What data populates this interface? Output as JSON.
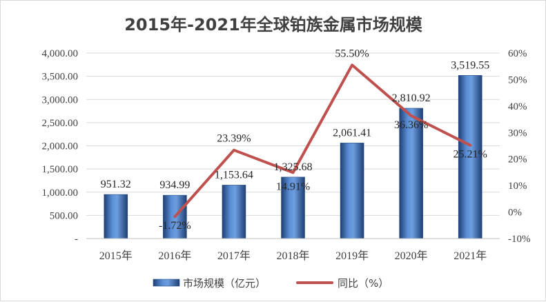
{
  "chart_data": {
    "type": "bar",
    "title": "2015年-2021年全球铂族金属市场规模",
    "categories": [
      "2015年",
      "2016年",
      "2017年",
      "2018年",
      "2019年",
      "2020年",
      "2021年"
    ],
    "series": [
      {
        "name": "市场规模（亿元）",
        "type": "bar",
        "axis": "left",
        "values": [
          951.32,
          934.99,
          1153.64,
          1325.68,
          2061.41,
          2810.92,
          3519.55
        ],
        "labels": [
          "951.32",
          "934.99",
          "1,153.64",
          "1,325.68",
          "2,061.41",
          "2,810.92",
          "3,519.55"
        ],
        "color": "#3e6fb0"
      },
      {
        "name": "同比（%）",
        "type": "line",
        "axis": "right",
        "values": [
          null,
          -1.72,
          23.39,
          14.91,
          55.5,
          36.36,
          25.21
        ],
        "labels": [
          "",
          "-1.72%",
          "23.39%",
          "14.91%",
          "55.50%",
          "36.36%",
          "25.21%"
        ],
        "color": "#c0504d"
      }
    ],
    "y_left": {
      "ylim": [
        0,
        4000
      ],
      "ticks": [
        0,
        500,
        1000,
        1500,
        2000,
        2500,
        3000,
        3500,
        4000
      ],
      "tick_labels": [
        "-",
        "500.00",
        "1,000.00",
        "1,500.00",
        "2,000.00",
        "2,500.00",
        "3,000.00",
        "3,500.00",
        "4,000.00"
      ]
    },
    "y_right": {
      "ylim": [
        -10,
        60
      ],
      "ticks": [
        -10,
        0,
        10,
        20,
        30,
        40,
        50,
        60
      ],
      "tick_labels": [
        "-10%",
        "0%",
        "10%",
        "20%",
        "30%",
        "40%",
        "50%",
        "60%"
      ]
    },
    "grid": true,
    "legend_position": "bottom"
  }
}
